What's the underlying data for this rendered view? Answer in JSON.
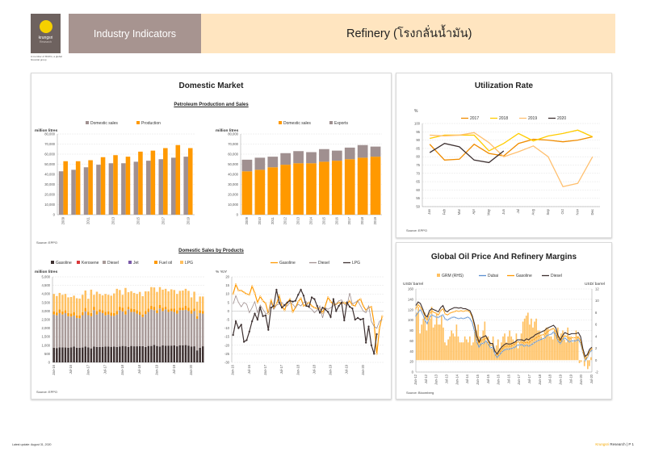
{
  "header": {
    "logo_brand": "krungsri",
    "logo_sub": "Research",
    "logo_note": "A member of MUFG, a global financial group",
    "section": "Industry Indicators",
    "title": "Refinery (โรงกลั่นน้ำมัน)"
  },
  "panels": {
    "domestic_market": "Domestic Market",
    "petroleum_subtitle": "Petroleum Production and Sales",
    "sales_by_products_subtitle": "Domestic Sales by Products",
    "utilization": "Utilization Rate",
    "global_oil": "Global Oil Price And Refinery Margins"
  },
  "sources": {
    "petroleum": "Source: EPPO",
    "sales": "Source: EPPO",
    "utilization": "Source: EPPO",
    "global": "Source: Bloomberg"
  },
  "footer": {
    "update": "Latest update: August 31, 2020",
    "brand": "Krungsri",
    "brand_rest": " Research |  P 1"
  },
  "colors": {
    "orange": "#ff9900",
    "taupe": "#a09090",
    "dark": "#3d3030",
    "light_orange": "#ffc060",
    "yellow": "#ffc000"
  },
  "chart_data": [
    {
      "id": "production_sales",
      "type": "bar",
      "ylabel": "million litres",
      "ylim": [
        0,
        80000
      ],
      "yticks": [
        0,
        10000,
        20000,
        30000,
        40000,
        50000,
        60000,
        70000,
        80000
      ],
      "categories": [
        "2009",
        "2010",
        "2011",
        "2012",
        "2013",
        "2014",
        "2015",
        "2016",
        "2017",
        "2018",
        "2019"
      ],
      "xtick_labels": [
        "2009",
        "",
        "2011",
        "",
        "2013",
        "",
        "2015",
        "",
        "2017",
        "",
        "2019"
      ],
      "series": [
        {
          "name": "Domestic sales",
          "values": [
            43000,
            44500,
            47000,
            49500,
            51000,
            51000,
            52500,
            53500,
            55000,
            56500,
            57500
          ]
        },
        {
          "name": "Production",
          "values": [
            53000,
            53000,
            54000,
            57000,
            59000,
            57500,
            62500,
            63500,
            66000,
            69000,
            66000
          ]
        }
      ]
    },
    {
      "id": "sales_exports",
      "type": "bar",
      "stacked": true,
      "ylabel": "million litres",
      "ylim": [
        0,
        80000
      ],
      "yticks": [
        0,
        10000,
        20000,
        30000,
        40000,
        50000,
        60000,
        70000,
        80000
      ],
      "categories": [
        "2009",
        "2010",
        "2011",
        "2012",
        "2013",
        "2014",
        "2015",
        "2016",
        "2017",
        "2018",
        "2019"
      ],
      "series": [
        {
          "name": "Domestic sales",
          "values": [
            43000,
            44500,
            47000,
            49500,
            51000,
            51000,
            52500,
            53500,
            55000,
            56500,
            57500
          ]
        },
        {
          "name": "Exports",
          "values": [
            11500,
            12000,
            10500,
            11500,
            12000,
            11000,
            12500,
            10000,
            11500,
            12500,
            10000
          ]
        }
      ]
    },
    {
      "id": "utilization",
      "type": "line",
      "ylabel": "%",
      "ylim": [
        50,
        100
      ],
      "yticks": [
        50,
        55,
        60,
        65,
        70,
        75,
        80,
        85,
        90,
        95,
        100
      ],
      "categories": [
        "Jan",
        "Feb",
        "Mar",
        "Apr",
        "May",
        "Jun",
        "Jul",
        "Aug",
        "Sep",
        "Oct",
        "Nov",
        "Dec"
      ],
      "series": [
        {
          "name": "2017",
          "values": [
            87.5,
            78,
            78.5,
            87.5,
            82,
            80.5,
            88,
            90.5,
            90,
            89,
            90,
            92
          ]
        },
        {
          "name": "2018",
          "values": [
            91,
            93,
            93,
            93,
            83.5,
            88,
            94,
            89.5,
            92.5,
            94,
            96,
            92
          ]
        },
        {
          "name": "2019",
          "values": [
            93,
            92.5,
            93,
            94.5,
            88.5,
            80,
            83,
            86.5,
            80,
            62,
            64,
            80
          ]
        },
        {
          "name": "2020",
          "values": [
            82.5,
            88,
            86,
            78,
            76.5,
            83.5,
            null,
            null,
            null,
            null,
            null,
            null
          ]
        }
      ]
    },
    {
      "id": "sales_by_products",
      "type": "bar",
      "stacked": true,
      "ylabel": "million litres",
      "ylim": [
        0,
        5000
      ],
      "yticks": [
        0,
        500,
        1000,
        1500,
        2000,
        2500,
        3000,
        3500,
        4000,
        4500,
        5000
      ],
      "xtick_labels": [
        "Jan-16",
        "Jul-16",
        "Jan-17",
        "Jul-17",
        "Jan-18",
        "Jul-18",
        "Jan-19",
        "Jul-19",
        "Jan-20"
      ],
      "legend": [
        "Gasoline",
        "Kerosene",
        "Diesel",
        "Jet",
        "Fuel oil",
        "LPG"
      ],
      "totals": [
        4000,
        3880,
        4060,
        3950,
        4000,
        3800,
        3820,
        3900,
        3750,
        3730,
        3950,
        4200,
        3720,
        4250,
        3950,
        4130,
        4000,
        3920,
        4000,
        3950,
        3900,
        4030,
        4300,
        4230,
        3950,
        4350,
        4100,
        4160,
        4060,
        4000,
        4120,
        3870,
        4150,
        4150,
        4400,
        4380,
        4120,
        4400,
        4250,
        4300,
        4150,
        4270,
        4230,
        4000,
        4180,
        4200,
        4300,
        4180,
        3800,
        4130,
        3550,
        3850,
        3850
      ],
      "gasoline": [
        850,
        840,
        880,
        880,
        870,
        860,
        880,
        930,
        860,
        860,
        870,
        930,
        880,
        820,
        930,
        900,
        900,
        910,
        920,
        920,
        910,
        920,
        900,
        920,
        960,
        940,
        900,
        960,
        940,
        940,
        950,
        950,
        900,
        960,
        960,
        1020,
        960,
        930,
        990,
        970,
        980,
        980,
        990,
        940,
        1000,
        990,
        1010,
        980,
        920,
        940,
        700,
        860,
        940
      ],
      "diesel_top": [
        2800,
        2750,
        2880,
        2800,
        2880,
        2700,
        2680,
        2740,
        2600,
        2580,
        2760,
        2980,
        2760,
        2700,
        3050,
        2800,
        2950,
        2880,
        2750,
        2800,
        2720,
        2720,
        2800,
        3050,
        2980,
        2800,
        3100,
        2950,
        2950,
        2850,
        2780,
        2650,
        2820,
        2950,
        3100,
        3050,
        2880,
        3150,
        3000,
        3100,
        2950,
        3000,
        2950,
        2850,
        3050,
        3050,
        3080,
        3000,
        2850,
        3000,
        2550,
        2880,
        2850
      ],
      "fuel_top": [
        2980,
        2920,
        3100,
        2980,
        3050,
        2880,
        2860,
        2940,
        2750,
        2750,
        2940,
        3180,
        2950,
        2880,
        3250,
        3000,
        3100,
        3050,
        2950,
        2980,
        2900,
        2880,
        3000,
        3250,
        3200,
        3000,
        3250,
        3150,
        3120,
        3050,
        2950,
        2800,
        3000,
        3150,
        3300,
        3250,
        3050,
        3350,
        3200,
        3250,
        3100,
        3150,
        3150,
        3050,
        3200,
        3200,
        3300,
        3200,
        3050,
        3150,
        2700,
        3050,
        3000
      ]
    },
    {
      "id": "yoy_growth",
      "type": "line",
      "ylabel": "% YoY",
      "ylim": [
        -30,
        20
      ],
      "yticks": [
        -30,
        -25,
        -20,
        -15,
        -10,
        -5,
        0,
        5,
        10,
        15,
        20
      ],
      "xtick_labels": [
        "Jan-16",
        "Jul-16",
        "Jan-17",
        "Jul-17",
        "Jan-18",
        "Jul-18",
        "Jan-19",
        "Jul-19",
        "Jan-20"
      ],
      "series": [
        {
          "name": "Gasoline",
          "values": [
            10,
            15.5,
            12,
            12,
            11,
            10,
            9.5,
            14.5,
            10.5,
            5,
            8.5,
            6,
            4.5,
            -1.5,
            6.5,
            1.5,
            4,
            9,
            3,
            0.5,
            5,
            7,
            -0.5,
            2,
            5.5,
            7.5,
            3,
            4,
            5,
            3,
            2,
            1.5,
            1.5,
            -1,
            3,
            8,
            5.5,
            4,
            4,
            5,
            4.5,
            5,
            4,
            6,
            3.5,
            3,
            6,
            7,
            3,
            0.5,
            2,
            2.5,
            -7,
            -25,
            -10,
            -3
          ]
        },
        {
          "name": "Diesel",
          "values": [
            4,
            9,
            5,
            2.5,
            5,
            4,
            -1,
            2,
            5.5,
            -1,
            3.5,
            1,
            -1.5,
            -1,
            5,
            1,
            3.5,
            4,
            5,
            3,
            3,
            5,
            4,
            2,
            4,
            3,
            5,
            5.5,
            2,
            1,
            -1,
            0.5,
            3,
            -4,
            2,
            1,
            2,
            3,
            4,
            6,
            6.5,
            4,
            3,
            10.5,
            4,
            5,
            6,
            3,
            0,
            -1,
            3,
            -6,
            -9,
            -10,
            -6,
            -5
          ]
        },
        {
          "name": "LPG",
          "values": [
            -14,
            -6,
            -10,
            -8,
            -18,
            -17,
            -12,
            -6,
            -1.5,
            -5,
            2,
            -3,
            -2.5,
            -11,
            2,
            3,
            12.5,
            5,
            2,
            3.5,
            5,
            6,
            5.5,
            6,
            9.5,
            12.5,
            9,
            3,
            2.5,
            8,
            7,
            3,
            -1,
            2,
            1,
            -0.5,
            -3.5,
            7,
            0,
            3,
            5,
            -5.5,
            5,
            2.5,
            1.5,
            -5,
            -4,
            -5,
            -4.5,
            -18.5,
            -9,
            -20,
            -25,
            -13.5
          ]
        }
      ],
      "legend": [
        "Gasoline",
        "Diesel",
        "LPG"
      ]
    },
    {
      "id": "global_oil",
      "type": "line",
      "ylabel_left": "USD/ barrel",
      "ylabel_right": "USD/ barrel",
      "ylim_left": [
        0,
        160
      ],
      "yticks_left": [
        0,
        20,
        40,
        60,
        80,
        100,
        120,
        140,
        160
      ],
      "ylim_right": [
        -2,
        12
      ],
      "yticks_right": [
        -2,
        0,
        2,
        4,
        6,
        8,
        10,
        12
      ],
      "xtick_labels": [
        "Jan-12",
        "Jul-12",
        "Jan-13",
        "Jul-13",
        "Jan-14",
        "Jul-14",
        "Jan-15",
        "Jul-15",
        "Jan-16",
        "Jul-16",
        "Jan-17",
        "Jul-17",
        "Jan-18",
        "Jul-18",
        "Jan-19",
        "Jul-19",
        "Jan-20",
        "Jul-20"
      ],
      "legend": [
        "GRM (RHS)",
        "Dubai",
        "Gasoline",
        "Diesel"
      ],
      "grm_rhs": [
        8,
        9,
        4.5,
        6,
        7,
        8,
        5,
        6.5,
        7,
        9,
        5.5,
        6,
        8,
        6,
        6,
        7.5,
        5.5,
        3,
        2.5,
        3.5,
        4,
        5,
        4.5,
        4,
        6,
        4,
        3,
        3,
        3,
        4,
        3.5,
        3,
        4,
        2.5,
        3,
        5,
        5,
        6,
        4,
        3.5,
        5,
        6.5,
        3,
        4,
        3,
        2,
        4,
        1,
        2.5,
        3.5,
        2,
        3,
        4,
        4.5,
        3,
        4,
        5,
        4,
        3.5,
        3,
        4.5,
        2,
        3,
        4.5,
        6.5,
        7,
        7.5,
        8,
        6,
        7,
        5.5,
        6.5,
        7,
        5,
        5,
        4,
        3.5,
        5,
        5.5,
        5.5,
        4,
        4,
        3.5,
        5,
        4.5,
        5.5,
        4,
        4.5,
        5,
        3.5,
        3,
        5.5,
        4,
        4,
        3,
        3.5,
        5,
        4,
        -0.5,
        -0.3,
        0,
        -1,
        0.5,
        -1.5,
        -1,
        0.5
      ],
      "dubai": [
        108,
        115,
        120,
        112,
        100,
        93,
        105,
        110,
        108,
        106,
        105,
        108,
        110,
        102,
        100,
        103,
        105,
        106,
        104,
        103,
        104,
        103,
        104,
        106,
        103,
        95,
        78,
        58,
        48,
        55,
        55,
        60,
        55,
        47,
        48,
        35,
        28,
        33,
        38,
        42,
        44,
        44,
        45,
        46,
        48,
        52,
        52,
        53,
        50,
        52,
        50,
        52,
        55,
        58,
        60,
        62,
        64,
        65,
        70,
        72,
        73,
        77,
        72,
        60,
        55,
        62,
        66,
        62,
        58,
        60,
        60,
        60,
        63,
        55,
        38,
        22,
        28,
        38,
        42
      ],
      "gasoline": [
        122,
        130,
        125,
        118,
        108,
        100,
        112,
        118,
        115,
        113,
        110,
        118,
        122,
        112,
        110,
        113,
        115,
        116,
        118,
        117,
        118,
        117,
        118,
        118,
        115,
        105,
        88,
        65,
        55,
        62,
        62,
        66,
        60,
        52,
        52,
        42,
        32,
        37,
        43,
        48,
        50,
        50,
        50,
        52,
        55,
        58,
        58,
        58,
        55,
        58,
        56,
        60,
        62,
        65,
        68,
        70,
        72,
        72,
        76,
        80,
        82,
        84,
        78,
        64,
        58,
        66,
        70,
        68,
        64,
        66,
        66,
        66,
        68,
        60,
        40,
        25,
        30,
        40,
        45
      ],
      "diesel": [
        128,
        135,
        132,
        122,
        110,
        106,
        118,
        122,
        120,
        118,
        116,
        124,
        128,
        118,
        116,
        120,
        122,
        124,
        124,
        123,
        124,
        122,
        122,
        120,
        118,
        108,
        92,
        70,
        58,
        66,
        68,
        70,
        62,
        55,
        55,
        40,
        35,
        42,
        48,
        52,
        55,
        54,
        54,
        56,
        58,
        62,
        62,
        62,
        60,
        64,
        62,
        66,
        68,
        72,
        74,
        76,
        78,
        80,
        84,
        86,
        88,
        90,
        85,
        70,
        62,
        70,
        76,
        74,
        72,
        74,
        74,
        74,
        76,
        68,
        45,
        30,
        34,
        44,
        48
      ]
    }
  ]
}
